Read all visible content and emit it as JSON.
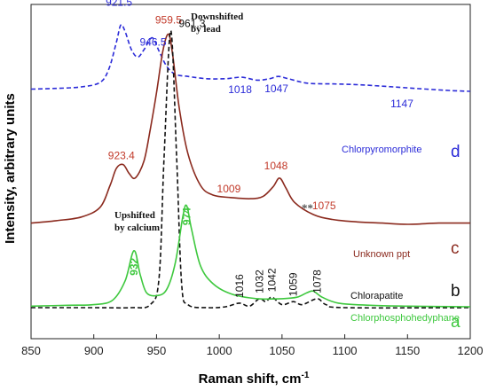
{
  "chart_data": {
    "type": "line",
    "xlabel": "Raman shift, cm",
    "xlabel_sup": "-1",
    "ylabel": "Intensity, arbitrary units",
    "xlim": [
      850,
      1200
    ],
    "ylim": [
      0,
      100
    ],
    "x_ticks": [
      850,
      900,
      950,
      1000,
      1050,
      1100,
      1150,
      1200
    ],
    "grid": false,
    "series": [
      {
        "name": "Chlorpyromorphite",
        "letter": "d",
        "color": "#2b2bd8",
        "style": "dashed",
        "points": [
          [
            850,
            48.5
          ],
          [
            870,
            49.0
          ],
          [
            890,
            50.0
          ],
          [
            905,
            53.0
          ],
          [
            912,
            62.0
          ],
          [
            918,
            80.0
          ],
          [
            921.5,
            91.5
          ],
          [
            925,
            87.0
          ],
          [
            930,
            75.0
          ],
          [
            935,
            70.0
          ],
          [
            940,
            75.0
          ],
          [
            946.5,
            83.0
          ],
          [
            952,
            74.0
          ],
          [
            958,
            64.0
          ],
          [
            965,
            58.5
          ],
          [
            975,
            57.0
          ],
          [
            990,
            55.5
          ],
          [
            1005,
            55.5
          ],
          [
            1018,
            56.5
          ],
          [
            1030,
            54.5
          ],
          [
            1040,
            55.5
          ],
          [
            1047,
            57.0
          ],
          [
            1055,
            55.5
          ],
          [
            1070,
            52.5
          ],
          [
            1090,
            52.0
          ],
          [
            1110,
            51.5
          ],
          [
            1130,
            50.5
          ],
          [
            1147,
            49.5
          ],
          [
            1165,
            48.5
          ],
          [
            1185,
            47.5
          ],
          [
            1200,
            47.0
          ]
        ]
      },
      {
        "name": "Unknown ppt",
        "letter": "c",
        "color": "#8b2a1e",
        "style": "solid",
        "points": [
          [
            850,
            16.5
          ],
          [
            870,
            17.5
          ],
          [
            890,
            19.0
          ],
          [
            905,
            23.0
          ],
          [
            913,
            32.0
          ],
          [
            918,
            39.0
          ],
          [
            923.4,
            40.5
          ],
          [
            928,
            37.0
          ],
          [
            933,
            35.0
          ],
          [
            940,
            42.0
          ],
          [
            945,
            55.0
          ],
          [
            950,
            70.0
          ],
          [
            955,
            87.0
          ],
          [
            959.5,
            94.0
          ],
          [
            963,
            85.0
          ],
          [
            968,
            64.0
          ],
          [
            975,
            45.0
          ],
          [
            985,
            32.0
          ],
          [
            995,
            28.0
          ],
          [
            1009,
            27.0
          ],
          [
            1025,
            26.5
          ],
          [
            1035,
            27.5
          ],
          [
            1043,
            31.5
          ],
          [
            1048,
            35.0
          ],
          [
            1053,
            31.0
          ],
          [
            1060,
            25.0
          ],
          [
            1075,
            20.0
          ],
          [
            1090,
            18.0
          ],
          [
            1110,
            17.0
          ],
          [
            1130,
            16.5
          ],
          [
            1150,
            16.0
          ],
          [
            1175,
            16.5
          ],
          [
            1200,
            16.5
          ]
        ]
      },
      {
        "name": "Chlorapatite",
        "letter": "b",
        "color": "#111111",
        "style": "dashed",
        "points": [
          [
            850,
            0.0
          ],
          [
            900,
            0.0
          ],
          [
            930,
            0.0
          ],
          [
            945,
            1.0
          ],
          [
            952,
            10.0
          ],
          [
            956,
            50.0
          ],
          [
            961.3,
            92.5
          ],
          [
            966,
            50.0
          ],
          [
            970,
            8.0
          ],
          [
            975,
            1.0
          ],
          [
            990,
            0.0
          ],
          [
            1005,
            0.3
          ],
          [
            1016,
            1.5
          ],
          [
            1024,
            0.5
          ],
          [
            1032,
            3.0
          ],
          [
            1037,
            2.0
          ],
          [
            1042,
            3.5
          ],
          [
            1050,
            1.0
          ],
          [
            1059,
            2.0
          ],
          [
            1066,
            1.0
          ],
          [
            1078,
            3.0
          ],
          [
            1085,
            1.0
          ],
          [
            1100,
            0.0
          ],
          [
            1200,
            0.0
          ]
        ]
      },
      {
        "name": "Chlorphosphohedyphane",
        "letter": "a",
        "color": "#3ec83e",
        "style": "solid",
        "points": [
          [
            850,
            0.5
          ],
          [
            880,
            0.8
          ],
          [
            900,
            1.0
          ],
          [
            915,
            2.5
          ],
          [
            925,
            9.0
          ],
          [
            932,
            19.0
          ],
          [
            937,
            11.0
          ],
          [
            942,
            5.0
          ],
          [
            950,
            4.0
          ],
          [
            958,
            6.0
          ],
          [
            965,
            15.0
          ],
          [
            971,
            30.5
          ],
          [
            974,
            34.0
          ],
          [
            978,
            26.0
          ],
          [
            985,
            14.0
          ],
          [
            995,
            8.0
          ],
          [
            1010,
            4.5
          ],
          [
            1030,
            3.0
          ],
          [
            1050,
            3.0
          ],
          [
            1062,
            3.5
          ],
          [
            1070,
            5.0
          ],
          [
            1075,
            5.5
          ],
          [
            1082,
            3.5
          ],
          [
            1095,
            1.5
          ],
          [
            1120,
            0.8
          ],
          [
            1150,
            0.5
          ],
          [
            1200,
            0.3
          ]
        ]
      }
    ],
    "peak_labels": [
      {
        "text": "921.5",
        "x": 921.5,
        "y": 91.5,
        "color": "#2b2bd8"
      },
      {
        "text": "946.5",
        "x": 946.5,
        "y": 83.0,
        "color": "#2b2bd8"
      },
      {
        "text": "1018",
        "x": 1018,
        "y": 56.5,
        "color": "#2b2bd8"
      },
      {
        "text": "1047",
        "x": 1047,
        "y": 57.0,
        "color": "#2b2bd8"
      },
      {
        "text": "1147",
        "x": 1147,
        "y": 49.5,
        "color": "#2b2bd8"
      },
      {
        "text": "959.5",
        "x": 959.5,
        "y": 94.0,
        "color": "#c23a2a"
      },
      {
        "text": "961.3",
        "x": 961.3,
        "y": 92.5,
        "color": "#111111"
      },
      {
        "text": "923.4",
        "x": 923.4,
        "y": 40.5,
        "color": "#c23a2a"
      },
      {
        "text": "1009",
        "x": 1009,
        "y": 27.0,
        "color": "#c23a2a"
      },
      {
        "text": "1048",
        "x": 1048,
        "y": 35.0,
        "color": "#c23a2a"
      },
      {
        "text": "1075",
        "x": 1075,
        "y": 20.0,
        "color": "#c23a2a"
      },
      {
        "text": "1016",
        "x": 1016,
        "y": 1.5,
        "color": "#111111",
        "rotate": true
      },
      {
        "text": "1032",
        "x": 1032,
        "y": 3.0,
        "color": "#111111",
        "rotate": true
      },
      {
        "text": "1042",
        "x": 1042,
        "y": 3.5,
        "color": "#111111",
        "rotate": true
      },
      {
        "text": "1059",
        "x": 1059,
        "y": 2.0,
        "color": "#111111",
        "rotate": true
      },
      {
        "text": "1078",
        "x": 1078,
        "y": 3.0,
        "color": "#111111",
        "rotate": true
      },
      {
        "text": "932",
        "x": 932,
        "y": 19.0,
        "color": "#3ec83e",
        "rotate": true,
        "bold": true
      },
      {
        "text": "974",
        "x": 974,
        "y": 34.0,
        "color": "#3ec83e",
        "rotate": true,
        "bold": true
      }
    ],
    "annotations": [
      {
        "lines": [
          "Downshifted",
          "by lead"
        ]
      },
      {
        "lines": [
          "Upshifted",
          "by calcium"
        ]
      },
      {
        "text": "**"
      }
    ]
  }
}
